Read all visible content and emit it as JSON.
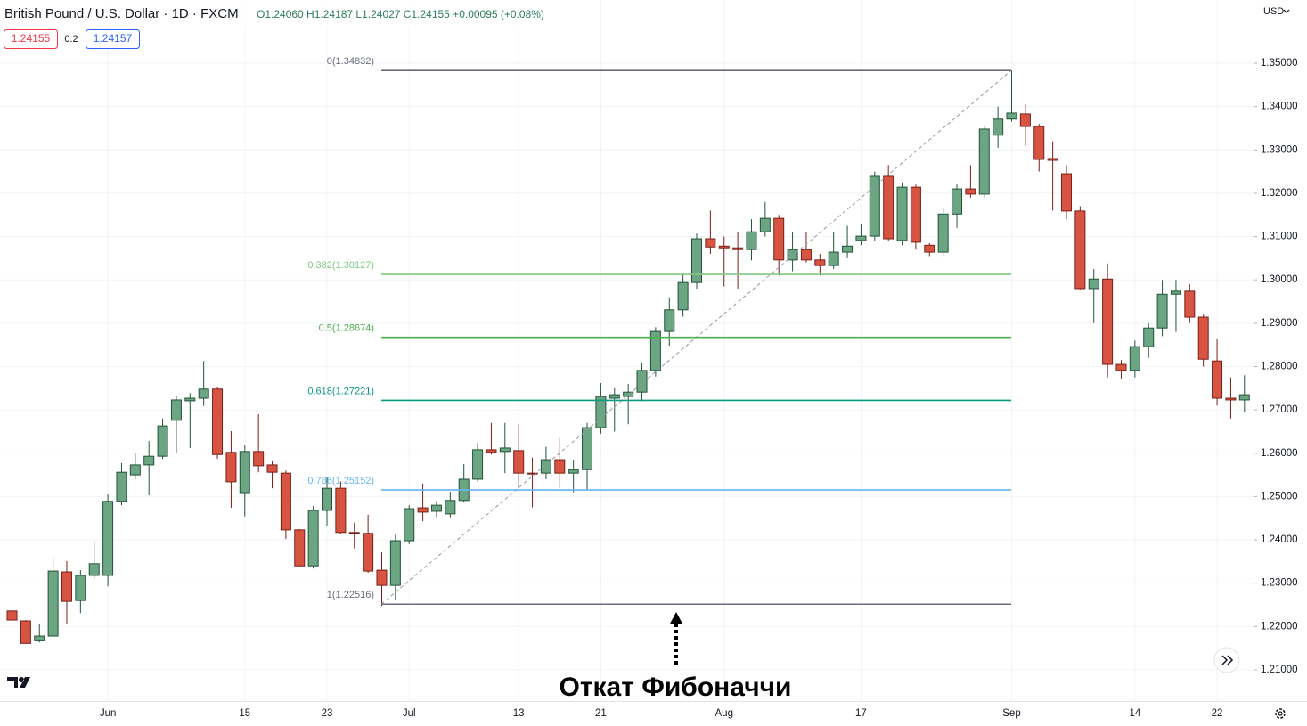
{
  "chart_data": {
    "type": "candlestick",
    "title": "British Pound / U.S. Dollar · 1D · FXCM",
    "subtitle": "O1.24060 H1.24187 L1.24027 C1.24155 +0.00095 (+0.08%)",
    "quote": {
      "bid": "1.24155",
      "spread": 0.2,
      "ask": "1.24157"
    },
    "currency": "USD",
    "annotation": "Откат Фибоначчи",
    "up_color": "#6ba583",
    "down_color": "#d75442",
    "grid": true,
    "categories": [
      null,
      null,
      null,
      null,
      null,
      null,
      null,
      "Jun",
      null,
      null,
      null,
      null,
      null,
      null,
      null,
      null,
      null,
      "15",
      null,
      null,
      null,
      null,
      null,
      "23",
      null,
      null,
      null,
      null,
      null,
      "Jul",
      null,
      null,
      null,
      null,
      null,
      null,
      null,
      "13",
      null,
      null,
      null,
      null,
      null,
      "21",
      null,
      null,
      null,
      null,
      null,
      null,
      null,
      null,
      "Aug",
      null,
      null,
      null,
      null,
      null,
      null,
      null,
      null,
      null,
      "17",
      null,
      null,
      null,
      null,
      null,
      null,
      null,
      null,
      null,
      null,
      "Sep",
      null,
      null,
      null,
      null,
      null,
      null,
      null,
      null,
      "14",
      null,
      null,
      null,
      null,
      null,
      "22",
      null,
      null
    ],
    "open": [
      1.2236,
      1.2213,
      1.2167,
      1.2178,
      1.2326,
      1.226,
      1.2318,
      1.2318,
      1.2489,
      1.255,
      1.2573,
      1.2593,
      1.2676,
      1.2721,
      1.2727,
      1.2748,
      1.2602,
      1.2509,
      1.2604,
      1.2573,
      1.2554,
      1.2423,
      1.234,
      1.2468,
      1.2519,
      1.2417,
      1.2415,
      1.233,
      1.2295,
      1.2398,
      1.2474,
      1.2466,
      1.246,
      1.2491,
      1.254,
      1.2608,
      1.2604,
      1.2606,
      1.2554,
      1.2554,
      1.2585,
      1.2554,
      1.2562,
      1.2659,
      1.2727,
      1.2731,
      1.2741,
      1.2791,
      1.2881,
      1.2931,
      1.2994,
      1.3095,
      1.3078,
      1.3074,
      1.307,
      1.3111,
      1.3142,
      1.3046,
      1.307,
      1.3046,
      1.3033,
      1.3064,
      1.3091,
      1.3101,
      1.3239,
      1.3091,
      1.3214,
      1.308,
      1.3064,
      1.3152,
      1.321,
      1.3198,
      1.3334,
      1.3371,
      1.3383,
      1.3354,
      1.328,
      1.3245,
      1.3159,
      1.298,
      1.3002,
      1.2805,
      1.2791,
      1.2846,
      1.2889,
      1.2967,
      1.2974,
      1.2914,
      1.2813,
      1.2727,
      1.2723
    ],
    "high": [
      1.2248,
      1.2215,
      1.2207,
      1.2359,
      1.2351,
      1.233,
      1.2396,
      1.2505,
      1.2577,
      1.26,
      1.2628,
      1.268,
      1.2733,
      1.2739,
      1.2813,
      1.2752,
      1.2651,
      1.2618,
      1.269,
      1.2583,
      1.256,
      1.2425,
      1.2478,
      1.2546,
      1.2535,
      1.244,
      1.2458,
      1.2371,
      1.2412,
      1.248,
      1.253,
      1.249,
      1.2511,
      1.2575,
      1.2624,
      1.267,
      1.267,
      1.2667,
      1.259,
      1.2615,
      1.2635,
      1.2585,
      1.267,
      1.2762,
      1.275,
      1.276,
      1.2808,
      1.2891,
      1.296,
      1.3013,
      1.3107,
      1.316,
      1.31,
      1.311,
      1.314,
      1.318,
      1.315,
      1.311,
      1.311,
      1.306,
      1.311,
      1.3125,
      1.313,
      1.325,
      1.3265,
      1.3225,
      1.322,
      1.3085,
      1.3165,
      1.322,
      1.3265,
      1.3355,
      1.34,
      1.3483,
      1.3405,
      1.336,
      1.332,
      1.3265,
      1.317,
      1.3025,
      1.3038,
      1.2815,
      1.286,
      1.29,
      1.3,
      1.3,
      1.299,
      1.292,
      1.2865,
      1.2775,
      1.278
    ],
    "low": [
      1.2186,
      1.216,
      1.2163,
      1.2176,
      1.2207,
      1.2231,
      1.231,
      1.2293,
      1.248,
      1.254,
      1.2503,
      1.2587,
      1.2602,
      1.2612,
      1.2709,
      1.2587,
      1.2474,
      1.2454,
      1.2556,
      1.2519,
      1.2402,
      1.2338,
      1.2334,
      1.2433,
      1.2413,
      1.238,
      1.2324,
      1.2248,
      1.2262,
      1.239,
      1.2443,
      1.2453,
      1.2452,
      1.2486,
      1.2535,
      1.2597,
      1.2554,
      1.252,
      1.2475,
      1.254,
      1.252,
      1.251,
      1.2515,
      1.2645,
      1.265,
      1.2667,
      1.272,
      1.2777,
      1.2848,
      1.2915,
      1.298,
      1.306,
      1.2985,
      1.298,
      1.3045,
      1.31,
      1.301,
      1.302,
      1.304,
      1.301,
      1.3025,
      1.305,
      1.308,
      1.309,
      1.309,
      1.308,
      1.307,
      1.3055,
      1.3055,
      1.312,
      1.319,
      1.319,
      1.3305,
      1.3365,
      1.331,
      1.325,
      1.316,
      1.314,
      1.2978,
      1.29,
      1.2775,
      1.277,
      1.2775,
      1.282,
      1.287,
      1.288,
      1.29,
      1.28,
      1.271,
      1.268,
      1.2695
    ],
    "close": [
      1.2215,
      1.2161,
      1.2178,
      1.2328,
      1.2258,
      1.2318,
      1.2345,
      1.2489,
      1.2556,
      1.2573,
      1.2593,
      1.2663,
      1.2723,
      1.2727,
      1.2748,
      1.2597,
      1.2534,
      1.2604,
      1.2571,
      1.2556,
      1.2423,
      1.234,
      1.2468,
      1.2519,
      1.2417,
      1.2415,
      1.2328,
      1.2295,
      1.2398,
      1.2472,
      1.2464,
      1.248,
      1.2491,
      1.254,
      1.2608,
      1.2602,
      1.2612,
      1.2554,
      1.2552,
      1.2585,
      1.2554,
      1.2562,
      1.2659,
      1.2731,
      1.2735,
      1.2741,
      1.2791,
      1.2881,
      1.2931,
      1.2994,
      1.3095,
      1.3076,
      1.3074,
      1.307,
      1.3111,
      1.3142,
      1.3046,
      1.307,
      1.3046,
      1.3033,
      1.3064,
      1.3078,
      1.3101,
      1.3239,
      1.3095,
      1.3214,
      1.3087,
      1.3064,
      1.3152,
      1.321,
      1.3198,
      1.3348,
      1.3371,
      1.3385,
      1.3354,
      1.3278,
      1.3276,
      1.3159,
      1.298,
      1.3002,
      1.2805,
      1.2791,
      1.2846,
      1.2889,
      1.2967,
      1.2974,
      1.2914,
      1.2817,
      1.2727,
      1.2723,
      1.2735
    ],
    "fib_levels": [
      {
        "label": "0(1.34832)",
        "price": 1.34832,
        "color": "#6b6e7a"
      },
      {
        "label": "0.382(1.30127)",
        "price": 1.30127,
        "color": "#81c784"
      },
      {
        "label": "0.5(1.28674)",
        "price": 1.28674,
        "color": "#4caf50"
      },
      {
        "label": "0.618(1.27221)",
        "price": 1.27221,
        "color": "#089981"
      },
      {
        "label": "0.786(1.25152)",
        "price": 1.25152,
        "color": "#64b5f6"
      },
      {
        "label": "1(1.22516)",
        "price": 1.22516,
        "color": "#6b6e7a"
      }
    ],
    "ylim": [
      1.2028,
      1.3646
    ],
    "yticks": [
      {
        "value": 1.21,
        "label": "1.21000"
      },
      {
        "value": 1.22,
        "label": "1.22000"
      },
      {
        "value": 1.23,
        "label": "1.23000"
      },
      {
        "value": 1.24,
        "label": "1.24000"
      },
      {
        "value": 1.25,
        "label": "1.25000"
      },
      {
        "value": 1.26,
        "label": "1.26000"
      },
      {
        "value": 1.27,
        "label": "1.27000"
      },
      {
        "value": 1.28,
        "label": "1.28000"
      },
      {
        "value": 1.29,
        "label": "1.29000"
      },
      {
        "value": 1.3,
        "label": "1.30000"
      },
      {
        "value": 1.31,
        "label": "1.31000"
      },
      {
        "value": 1.32,
        "label": "1.32000"
      },
      {
        "value": 1.33,
        "label": "1.33000"
      },
      {
        "value": 1.34,
        "label": "1.34000"
      },
      {
        "value": 1.35,
        "label": "1.35000"
      }
    ]
  }
}
